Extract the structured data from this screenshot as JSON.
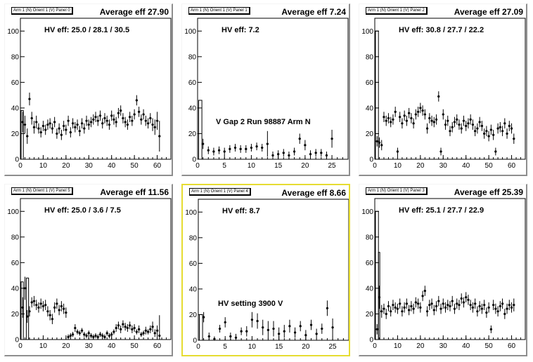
{
  "colors": {
    "background": "#ffffff",
    "selected_border": "#e6dc32",
    "marker": "#000000"
  },
  "panels": [
    {
      "title": "Arm 1 (N) Orient 1 (V) Panel 0",
      "average": "Average eff 27.90",
      "hv": "HV eff:   25.0 / 28.1 / 30.5",
      "annotation": "",
      "selected": false
    },
    {
      "title": "Arm 1 (N) Orient 1 (V) Panel 1",
      "average": "Average eff 7.24",
      "hv": "HV eff:   7.2",
      "annotation": "V Gap 2 Run 98887 Arm N",
      "selected": false
    },
    {
      "title": "Arm 1 (N) Orient 1 (V) Panel 2",
      "average": "Average eff 27.09",
      "hv": "HV eff:   30.8 / 27.7 / 22.2",
      "annotation": "",
      "selected": false
    },
    {
      "title": "Arm 1 (N) Orient 1 (V) Panel 5",
      "average": "Average eff 11.56",
      "hv": "HV eff:   25.0 / 3.6 / 7.5",
      "annotation": "",
      "selected": false
    },
    {
      "title": "Arm 1 (N) Orient 1 (V) Panel 4",
      "average": "Average eff 8.66",
      "hv": "HV eff:   8.7",
      "annotation": "HV setting 3900 V",
      "selected": true
    },
    {
      "title": "Arm 1 (N) Orient 1 (V) Panel 3",
      "average": "Average eff 25.39",
      "hv": "HV eff:   25.1 / 27.7 / 22.9",
      "annotation": "",
      "selected": false
    }
  ],
  "chart_data": [
    {
      "type": "scatter",
      "ylim": [
        0,
        110
      ],
      "xlim": [
        0,
        66
      ],
      "xticks": [
        "0",
        "10",
        "20",
        "30",
        "40",
        "50",
        "60"
      ],
      "yticks": [
        "0",
        "20",
        "40",
        "60",
        "80",
        "100"
      ],
      "series": [
        {
          "x": [
            1,
            2,
            3,
            4,
            5,
            6,
            7,
            8,
            9,
            10,
            11,
            12,
            13,
            14,
            15,
            16,
            17,
            18,
            19,
            20,
            21,
            22,
            23,
            24,
            25,
            26,
            27,
            28,
            29,
            30,
            31,
            32,
            33,
            34,
            35,
            36,
            37,
            38,
            39,
            40,
            41,
            42,
            43,
            44,
            45,
            46,
            47,
            48,
            49,
            50,
            51,
            52,
            53,
            54,
            55,
            56,
            57,
            58,
            59,
            60,
            61
          ],
          "y": [
            29,
            27,
            18,
            47,
            32,
            25,
            29,
            24,
            21,
            26,
            23,
            27,
            28,
            24,
            29,
            20,
            24,
            19,
            26,
            23,
            30,
            21,
            28,
            25,
            27,
            22,
            28,
            24,
            30,
            27,
            29,
            31,
            33,
            30,
            34,
            28,
            32,
            30,
            27,
            34,
            31,
            29,
            36,
            38,
            32,
            29,
            27,
            33,
            30,
            35,
            46,
            37,
            31,
            35,
            30,
            28,
            32,
            27,
            25,
            30,
            18
          ],
          "err": [
            8,
            7,
            6,
            5,
            5,
            5,
            5,
            4,
            4,
            4,
            4,
            4,
            4,
            4,
            4,
            4,
            4,
            4,
            4,
            4,
            4,
            4,
            4,
            4,
            4,
            4,
            4,
            4,
            4,
            4,
            4,
            4,
            4,
            4,
            4,
            4,
            4,
            4,
            4,
            4,
            4,
            4,
            4,
            4,
            4,
            4,
            4,
            4,
            4,
            4,
            4,
            4,
            4,
            4,
            4,
            4,
            4,
            5,
            6,
            7,
            12
          ]
        }
      ],
      "boxes": [
        {
          "x0": 0.3,
          "x1": 1.3,
          "y0": 0,
          "y1": 38
        }
      ]
    },
    {
      "type": "scatter",
      "ylim": [
        0,
        110
      ],
      "xlim": [
        0,
        28
      ],
      "xticks": [
        "0",
        "5",
        "10",
        "15",
        "20",
        "25"
      ],
      "yticks": [
        "0",
        "20",
        "40",
        "60",
        "80",
        "100"
      ],
      "series": [
        {
          "x": [
            1,
            2,
            3,
            4,
            5,
            6,
            7,
            8,
            9,
            10,
            11,
            12,
            13,
            14,
            15,
            16,
            17,
            18,
            19,
            20,
            21,
            22,
            23,
            24,
            25
          ],
          "y": [
            12,
            7,
            6,
            7,
            6,
            8,
            9,
            8,
            8,
            9,
            10,
            9,
            12,
            3,
            4,
            5,
            3,
            6,
            16,
            11,
            4,
            5,
            5,
            3,
            16
          ],
          "err": [
            4,
            3,
            3,
            3,
            3,
            3,
            3,
            3,
            3,
            3,
            3,
            3,
            10,
            3,
            3,
            3,
            3,
            3,
            4,
            4,
            3,
            3,
            3,
            3,
            7
          ]
        }
      ],
      "boxes": [
        {
          "x0": 0.2,
          "x1": 0.8,
          "y0": 0,
          "y1": 46
        }
      ]
    },
    {
      "type": "scatter",
      "ylim": [
        0,
        110
      ],
      "xlim": [
        0,
        66
      ],
      "xticks": [
        "0",
        "10",
        "20",
        "30",
        "40",
        "50",
        "60"
      ],
      "yticks": [
        "0",
        "20",
        "40",
        "60",
        "80",
        "100"
      ],
      "series": [
        {
          "x": [
            1,
            2,
            3,
            4,
            5,
            6,
            7,
            8,
            9,
            10,
            11,
            12,
            13,
            14,
            15,
            16,
            17,
            18,
            19,
            20,
            21,
            22,
            23,
            24,
            25,
            26,
            27,
            28,
            29,
            30,
            31,
            32,
            33,
            34,
            35,
            36,
            37,
            38,
            39,
            40,
            41,
            42,
            43,
            44,
            45,
            46,
            47,
            48,
            49,
            50,
            51,
            52,
            53,
            54,
            55,
            56,
            57,
            58,
            59,
            60,
            61
          ],
          "y": [
            14,
            13,
            11,
            33,
            30,
            32,
            29,
            31,
            37,
            6,
            33,
            28,
            34,
            30,
            36,
            32,
            28,
            35,
            37,
            40,
            38,
            35,
            24,
            32,
            30,
            29,
            31,
            49,
            6,
            35,
            27,
            30,
            22,
            25,
            29,
            31,
            27,
            24,
            30,
            26,
            28,
            31,
            27,
            22,
            24,
            29,
            26,
            20,
            22,
            18,
            23,
            19,
            6,
            24,
            25,
            22,
            28,
            20,
            26,
            24,
            16
          ],
          "err": [
            4,
            4,
            4,
            4,
            4,
            4,
            4,
            4,
            4,
            3,
            4,
            4,
            4,
            4,
            4,
            4,
            4,
            4,
            4,
            4,
            4,
            4,
            4,
            4,
            4,
            4,
            4,
            4,
            3,
            4,
            4,
            4,
            4,
            4,
            4,
            4,
            4,
            4,
            4,
            4,
            4,
            4,
            4,
            4,
            4,
            4,
            4,
            4,
            4,
            4,
            4,
            4,
            3,
            4,
            4,
            4,
            4,
            4,
            4,
            4,
            4
          ]
        }
      ],
      "boxes": [
        {
          "x0": 0.3,
          "x1": 1.6,
          "y0": 0,
          "y1": 100
        }
      ]
    },
    {
      "type": "scatter",
      "ylim": [
        0,
        110
      ],
      "xlim": [
        0,
        66
      ],
      "xticks": [
        "0",
        "10",
        "20",
        "30",
        "40",
        "50",
        "60"
      ],
      "yticks": [
        "0",
        "20",
        "40",
        "60",
        "80",
        "100"
      ],
      "series": [
        {
          "x": [
            1,
            2,
            3,
            4,
            5,
            6,
            7,
            8,
            9,
            10,
            11,
            12,
            13,
            14,
            15,
            16,
            17,
            18,
            19,
            20,
            21,
            22,
            23,
            24,
            25,
            26,
            27,
            28,
            29,
            30,
            31,
            32,
            33,
            34,
            35,
            36,
            37,
            38,
            39,
            40,
            41,
            42,
            43,
            44,
            45,
            46,
            47,
            48,
            49,
            50,
            51,
            52,
            53,
            54,
            55,
            56,
            57,
            58,
            59,
            60,
            61
          ],
          "y": [
            25,
            40,
            18,
            22,
            29,
            30,
            27,
            25,
            28,
            26,
            27,
            22,
            19,
            16,
            25,
            28,
            23,
            26,
            24,
            21,
            2,
            3,
            4,
            9,
            6,
            5,
            7,
            4,
            3,
            5,
            3,
            2,
            3,
            2,
            4,
            3,
            2,
            5,
            3,
            4,
            6,
            9,
            11,
            8,
            12,
            10,
            9,
            11,
            8,
            9,
            6,
            8,
            4,
            5,
            7,
            6,
            8,
            10,
            5,
            7,
            3
          ],
          "err": [
            8,
            9,
            5,
            4,
            4,
            4,
            4,
            4,
            4,
            4,
            4,
            4,
            4,
            4,
            4,
            4,
            4,
            4,
            4,
            4,
            2,
            2,
            2,
            3,
            2,
            2,
            2,
            2,
            2,
            2,
            2,
            2,
            2,
            2,
            2,
            2,
            2,
            2,
            2,
            2,
            2,
            3,
            3,
            3,
            3,
            3,
            3,
            3,
            3,
            3,
            2,
            3,
            2,
            2,
            3,
            2,
            3,
            4,
            3,
            4,
            16
          ]
        }
      ],
      "boxes": [
        {
          "x0": 0.3,
          "x1": 1.3,
          "y0": 0,
          "y1": 45
        },
        {
          "x0": 2.6,
          "x1": 3.6,
          "y0": 0,
          "y1": 48
        }
      ]
    },
    {
      "type": "scatter",
      "ylim": [
        0,
        110
      ],
      "xlim": [
        0,
        28
      ],
      "xticks": [
        "0",
        "5",
        "10",
        "15",
        "20",
        "25"
      ],
      "yticks": [
        "0",
        "20",
        "40",
        "60",
        "80",
        "100"
      ],
      "series": [
        {
          "x": [
            1,
            2,
            3,
            4,
            5,
            6,
            7,
            8,
            9,
            10,
            11,
            12,
            13,
            14,
            15,
            16,
            17,
            18,
            19,
            20,
            21,
            22,
            23,
            24,
            25
          ],
          "y": [
            18,
            3,
            1,
            9,
            14,
            3,
            2,
            7,
            7,
            16,
            15,
            10,
            8,
            9,
            5,
            7,
            11,
            6,
            11,
            4,
            12,
            5,
            9,
            25,
            10
          ],
          "err": [
            4,
            3,
            2,
            3,
            4,
            3,
            3,
            3,
            4,
            6,
            6,
            6,
            7,
            6,
            5,
            5,
            5,
            4,
            4,
            4,
            4,
            4,
            4,
            6,
            7
          ]
        }
      ],
      "boxes": [
        {
          "x0": 0.2,
          "x1": 0.8,
          "y0": 0,
          "y1": 20
        }
      ]
    },
    {
      "type": "scatter",
      "ylim": [
        0,
        110
      ],
      "xlim": [
        0,
        66
      ],
      "xticks": [
        "0",
        "10",
        "20",
        "30",
        "40",
        "50",
        "60"
      ],
      "yticks": [
        "0",
        "20",
        "40",
        "60",
        "80",
        "100"
      ],
      "series": [
        {
          "x": [
            1,
            2,
            3,
            4,
            5,
            6,
            7,
            8,
            9,
            10,
            11,
            12,
            13,
            14,
            15,
            16,
            17,
            18,
            19,
            20,
            21,
            22,
            23,
            24,
            25,
            26,
            27,
            28,
            29,
            30,
            31,
            32,
            33,
            34,
            35,
            36,
            37,
            38,
            39,
            40,
            41,
            42,
            43,
            44,
            45,
            46,
            47,
            48,
            49,
            50,
            51,
            52,
            53,
            54,
            55,
            56,
            57,
            58,
            59,
            60,
            61
          ],
          "y": [
            8,
            33,
            22,
            24,
            20,
            26,
            22,
            27,
            25,
            24,
            28,
            22,
            25,
            28,
            23,
            26,
            24,
            29,
            28,
            25,
            34,
            38,
            22,
            27,
            28,
            23,
            26,
            30,
            24,
            28,
            25,
            27,
            26,
            30,
            24,
            28,
            27,
            32,
            29,
            33,
            31,
            27,
            25,
            28,
            22,
            26,
            24,
            27,
            21,
            25,
            8,
            27,
            24,
            22,
            26,
            28,
            20,
            24,
            27,
            25,
            27
          ],
          "err": [
            4,
            9,
            5,
            4,
            4,
            4,
            4,
            4,
            4,
            4,
            4,
            4,
            4,
            4,
            4,
            4,
            4,
            4,
            4,
            4,
            4,
            4,
            4,
            4,
            4,
            4,
            4,
            4,
            4,
            4,
            4,
            4,
            4,
            4,
            4,
            4,
            4,
            4,
            4,
            4,
            4,
            4,
            4,
            4,
            4,
            4,
            4,
            4,
            4,
            4,
            3,
            4,
            4,
            4,
            4,
            4,
            4,
            4,
            4,
            4,
            5
          ]
        }
      ],
      "boxes": [
        {
          "x0": 0.3,
          "x1": 1.6,
          "y0": 0,
          "y1": 100
        },
        {
          "x0": 1.6,
          "x1": 2.2,
          "y0": 0,
          "y1": 68
        }
      ]
    }
  ]
}
